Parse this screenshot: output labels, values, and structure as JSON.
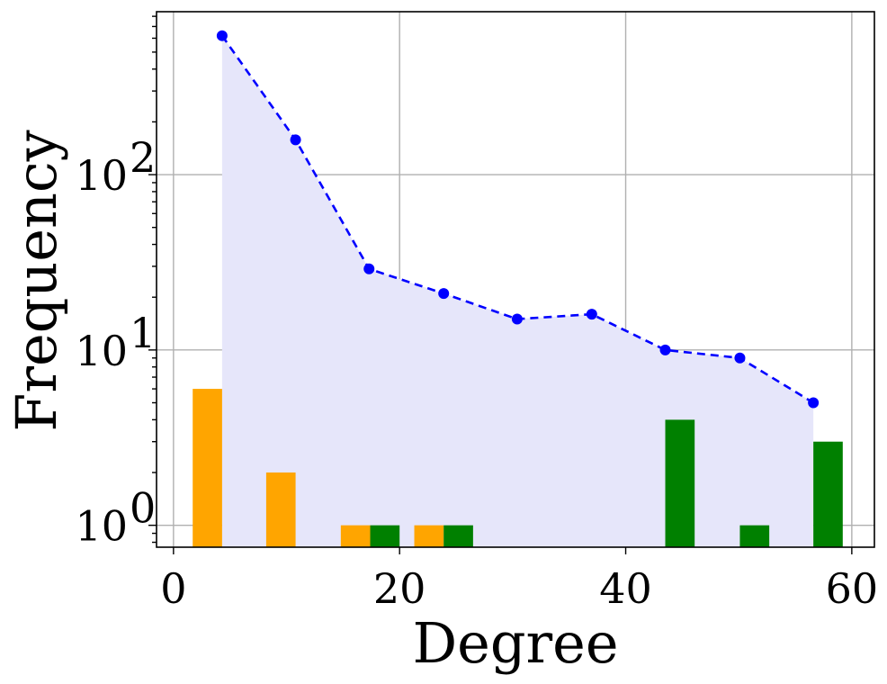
{
  "chart_data": {
    "type": "bar",
    "title": "",
    "xlabel": "Degree",
    "ylabel": "Frequency",
    "xscale": "linear",
    "yscale": "log",
    "xlim": [
      -1.5,
      62
    ],
    "ylim": [
      0.75,
      850
    ],
    "grid": true,
    "legend": "none",
    "x_ticks": [
      {
        "value": 0,
        "label": "0"
      },
      {
        "value": 20,
        "label": "20"
      },
      {
        "value": 40,
        "label": "40"
      },
      {
        "value": 60,
        "label": "60"
      }
    ],
    "y_ticks": [
      {
        "value": 1,
        "base": "10",
        "exp": "0"
      },
      {
        "value": 10,
        "base": "10",
        "exp": "1"
      },
      {
        "value": 100,
        "base": "10",
        "exp": "2"
      }
    ],
    "line": {
      "color": "#0000ff",
      "fill_color": "#e6e6fa",
      "style": "dashed",
      "points": [
        {
          "x": 4.3,
          "y": 620
        },
        {
          "x": 10.8,
          "y": 158
        },
        {
          "x": 17.3,
          "y": 29
        },
        {
          "x": 23.9,
          "y": 21
        },
        {
          "x": 30.4,
          "y": 15
        },
        {
          "x": 37.0,
          "y": 16
        },
        {
          "x": 43.5,
          "y": 10
        },
        {
          "x": 50.1,
          "y": 9
        },
        {
          "x": 56.6,
          "y": 5
        }
      ]
    },
    "bar_series": [
      {
        "color": "#ffa500",
        "bars": [
          {
            "x0": 1.7,
            "x1": 4.3,
            "value": 6
          },
          {
            "x0": 8.2,
            "x1": 10.8,
            "value": 2
          },
          {
            "x0": 14.8,
            "x1": 17.4,
            "value": 1
          },
          {
            "x0": 21.3,
            "x1": 23.9,
            "value": 1
          }
        ]
      },
      {
        "color": "#008000",
        "bars": [
          {
            "x0": 17.4,
            "x1": 20.0,
            "value": 1
          },
          {
            "x0": 23.9,
            "x1": 26.5,
            "value": 1
          },
          {
            "x0": 43.5,
            "x1": 46.1,
            "value": 4
          },
          {
            "x0": 50.1,
            "x1": 52.7,
            "value": 1
          },
          {
            "x0": 56.6,
            "x1": 59.2,
            "value": 3
          }
        ]
      }
    ]
  }
}
